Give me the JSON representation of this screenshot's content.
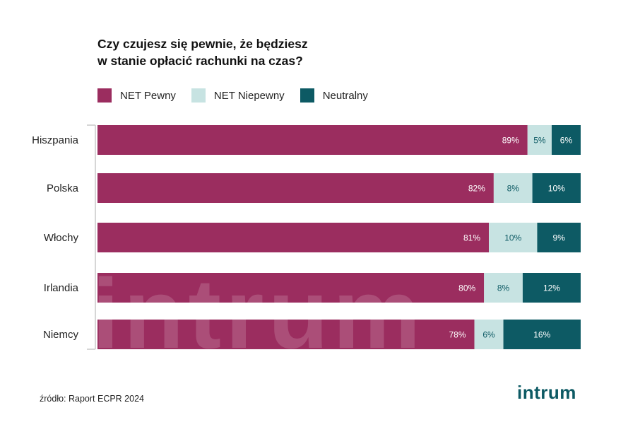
{
  "title_lines": [
    "Czy czujesz się pewnie, że będziesz",
    "w stanie opłacić rachunki na czas?"
  ],
  "legend": [
    {
      "label": "NET Pewny",
      "color": "#9b2d5f"
    },
    {
      "label": "NET Niepewny",
      "color": "#c7e3e2"
    },
    {
      "label": "Neutralny",
      "color": "#0d5a64"
    }
  ],
  "source": "źródło: Raport ECPR 2024",
  "logo": "intrum",
  "watermark": "intrum",
  "chart_data": {
    "type": "bar",
    "orientation": "horizontal",
    "stacked": true,
    "normalized": true,
    "categories": [
      "Hiszpania",
      "Polska",
      "Włochy",
      "Irlandia",
      "Niemcy"
    ],
    "series": [
      {
        "name": "NET Pewny",
        "values": [
          89,
          82,
          81,
          80,
          78
        ],
        "labels": [
          "89%",
          "82%",
          "81%",
          "80%",
          "78%"
        ],
        "color": "#9b2d5f",
        "label_color": "#ffffff"
      },
      {
        "name": "NET Niepewny",
        "values": [
          5,
          8,
          10,
          8,
          6
        ],
        "labels": [
          "5%",
          "8%",
          "10%",
          "8%",
          "6%"
        ],
        "color": "#c7e3e2",
        "label_color": "#0d5a64"
      },
      {
        "name": "Neutralny",
        "values": [
          6,
          10,
          9,
          12,
          16
        ],
        "labels": [
          "6%",
          "10%",
          "9%",
          "12%",
          "16%"
        ],
        "color": "#0d5a64",
        "label_color": "#ffffff"
      }
    ],
    "xlim": [
      0,
      100
    ],
    "grid": false,
    "legend_position": "top-left"
  }
}
